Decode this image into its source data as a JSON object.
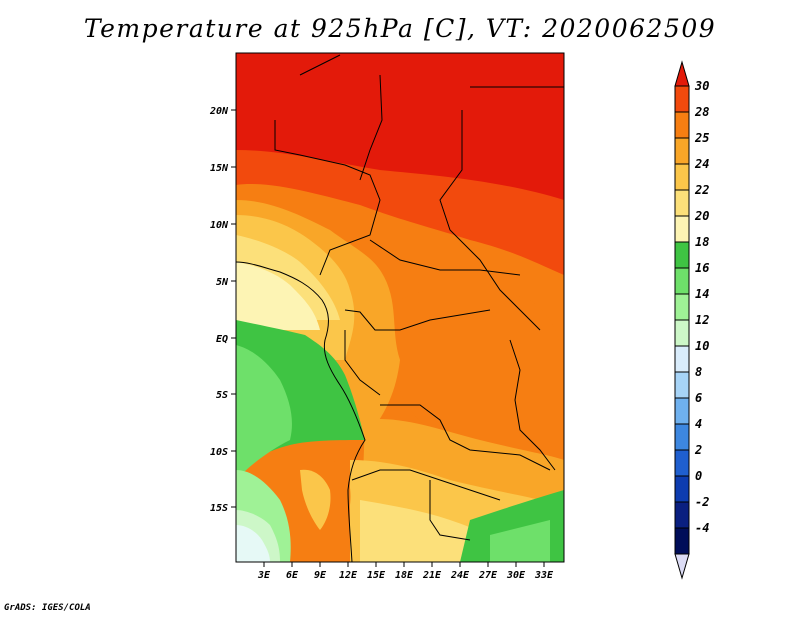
{
  "title": "Temperature at 925hPa [C], VT: 2020062509",
  "credit": "GrADS: IGES/COLA",
  "map": {
    "lon_labels": [
      "3E",
      "6E",
      "9E",
      "12E",
      "15E",
      "18E",
      "21E",
      "24E",
      "27E",
      "30E",
      "33E"
    ],
    "lat_labels": [
      "20N",
      "15N",
      "10N",
      "5N",
      "EQ",
      "5S",
      "10S",
      "15S"
    ],
    "field": "Temperature at 925hPa",
    "units": "C",
    "valid_time": "2020062509"
  },
  "colorbar": {
    "labels": [
      "30",
      "28",
      "25",
      "24",
      "22",
      "20",
      "18",
      "16",
      "14",
      "12",
      "10",
      "8",
      "6",
      "4",
      "2",
      "0",
      "-2",
      "-4"
    ],
    "colors": [
      "#e31a0a",
      "#f24a0d",
      "#f67e12",
      "#f9a628",
      "#fbc64a",
      "#fce07a",
      "#fdf4b4",
      "#3fc443",
      "#6ee06a",
      "#9ff296",
      "#cdf7c8",
      "#d9ecfb",
      "#a7d4f7",
      "#6fb1ef",
      "#3d87e0",
      "#1f5fcf",
      "#0d3cb0",
      "#0a1f80",
      "#000d59",
      "#dcdcf5"
    ]
  }
}
